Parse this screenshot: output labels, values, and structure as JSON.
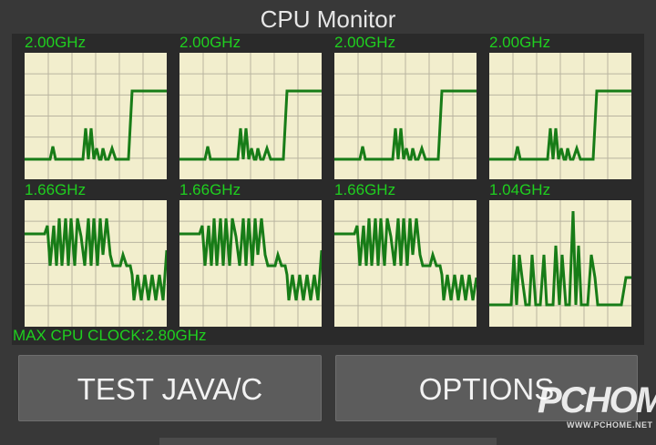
{
  "app": {
    "title": "CPU Monitor"
  },
  "cores": [
    {
      "frequency": "2.00GHz"
    },
    {
      "frequency": "2.00GHz"
    },
    {
      "frequency": "2.00GHz"
    },
    {
      "frequency": "2.00GHz"
    },
    {
      "frequency": "1.66GHz"
    },
    {
      "frequency": "1.66GHz"
    },
    {
      "frequency": "1.66GHz"
    },
    {
      "frequency": "1.04GHz"
    }
  ],
  "max_clock": "MAX CPU CLOCK:2.80GHz",
  "buttons": {
    "test_label": "TEST JAVA/C",
    "options_label": "OPTIONS"
  },
  "watermark": {
    "main": "PCHOME",
    "sub": "WWW.PCHOME.NET"
  },
  "colors": {
    "graph_bg": "#f2eecd",
    "grid": "#b9b4a0",
    "line": "#177c17",
    "label": "#1fd01f"
  }
}
